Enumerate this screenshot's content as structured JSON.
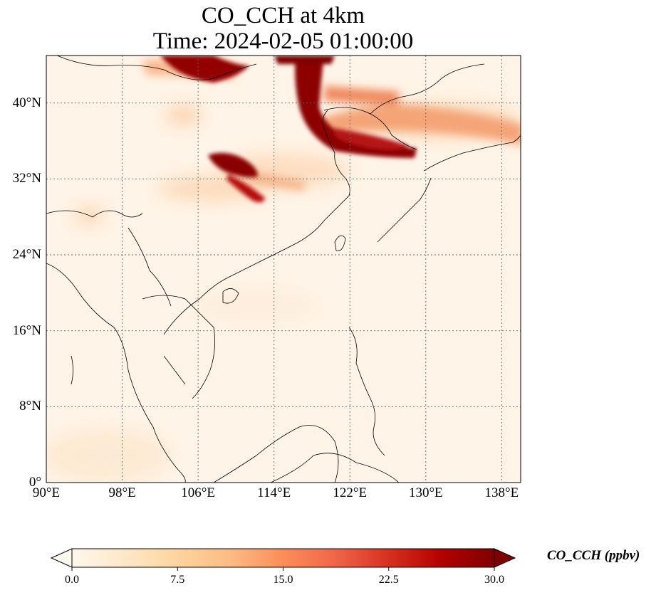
{
  "title": {
    "line1": "CO_CCH at 4km",
    "line2": "Time: 2024-02-05 01:00:00"
  },
  "map": {
    "lon_range": [
      90,
      140
    ],
    "lat_range": [
      0,
      45
    ],
    "lon_ticks": [
      {
        "value": 90,
        "label": "90°E"
      },
      {
        "value": 98,
        "label": "98°E"
      },
      {
        "value": 106,
        "label": "106°E"
      },
      {
        "value": 114,
        "label": "114°E"
      },
      {
        "value": 122,
        "label": "122°E"
      },
      {
        "value": 130,
        "label": "130°E"
      },
      {
        "value": 138,
        "label": "138°E"
      }
    ],
    "lat_ticks": [
      {
        "value": 0,
        "label": "0°"
      },
      {
        "value": 8,
        "label": "8°N"
      },
      {
        "value": 16,
        "label": "16°N"
      },
      {
        "value": 24,
        "label": "24°N"
      },
      {
        "value": 32,
        "label": "32°N"
      },
      {
        "value": 40,
        "label": "40°N"
      }
    ],
    "gridlines": true
  },
  "colorbar": {
    "label": "CO_CCH (ppbv)",
    "min": 0,
    "max": 30,
    "extend": "both",
    "colormap": [
      "#fff7ec",
      "#fee8c8",
      "#fdd49e",
      "#fdbb84",
      "#fc8d59",
      "#ef6548",
      "#d7301f",
      "#b30000",
      "#7f0000"
    ],
    "ticks": [
      "0.0",
      "7.5",
      "15.0",
      "22.5",
      "30.0"
    ]
  }
}
